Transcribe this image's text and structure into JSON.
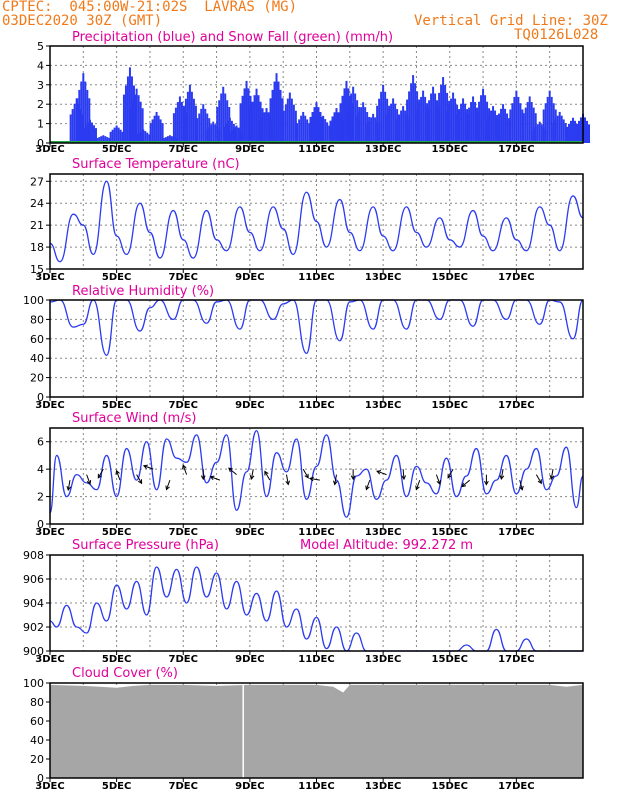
{
  "header": {
    "line1_left": "CPTEC:  045:00W-21:02S  LAVRAS (MG)",
    "line2_left": "03DEC2020 30Z (GMT)",
    "line2_right": "Vertical Grid Line: 30Z",
    "line3_right": "TQ0126L028"
  },
  "colors": {
    "header": "#f07a1a",
    "panel_title": "#e0009a",
    "series": "#2b3bf0",
    "snow": "#1aa84a",
    "cloud": "#a6a6a6",
    "grid": "#888888"
  },
  "chart_data": [
    {
      "type": "bar",
      "title": "Precipitation (blue) and Snow Fall (green) (mm/h)",
      "ylim": [
        0,
        5
      ],
      "yticks": [
        "0",
        "1",
        "2",
        "3",
        "4",
        "5"
      ],
      "xticks": [
        "3DEC",
        "5DEC",
        "7DEC",
        "9DEC",
        "11DEC",
        "13DEC",
        "15DEC",
        "17DEC"
      ],
      "x_range_days": [
        3,
        19
      ],
      "series": [
        {
          "name": "Precipitation",
          "x": [
            3.8,
            4.0,
            4.2,
            4.6,
            5.0,
            5.4,
            5.6,
            5.8,
            6.2,
            6.6,
            6.9,
            7.2,
            7.6,
            7.9,
            8.2,
            8.4,
            8.6,
            8.9,
            9.2,
            9.5,
            9.8,
            10.2,
            10.6,
            11.0,
            11.2,
            11.6,
            11.9,
            12.1,
            12.4,
            12.7,
            13.0,
            13.3,
            13.6,
            13.9,
            14.2,
            14.5,
            14.8,
            15.1,
            15.4,
            15.7,
            16.0,
            16.3,
            16.6,
            17.0,
            17.4,
            17.7,
            18.0,
            18.3,
            18.7,
            19.0
          ],
          "values": [
            2.3,
            3.6,
            1.2,
            0.4,
            0.9,
            3.9,
            2.8,
            0.7,
            1.6,
            0.4,
            2.4,
            3.0,
            2.0,
            1.1,
            2.9,
            1.3,
            0.9,
            3.2,
            2.8,
            1.8,
            3.6,
            2.6,
            1.6,
            2.1,
            1.4,
            1.8,
            3.2,
            2.9,
            2.1,
            1.5,
            3.0,
            2.3,
            1.9,
            3.5,
            2.7,
            2.9,
            3.4,
            2.6,
            2.3,
            2.4,
            2.8,
            1.9,
            2.0,
            2.7,
            2.4,
            1.1,
            2.7,
            1.6,
            1.3,
            1.5
          ]
        },
        {
          "name": "Snow Fall",
          "x": [
            3,
            19
          ],
          "values": [
            0,
            0
          ]
        }
      ]
    },
    {
      "type": "line",
      "title": "Surface Temperature (nC)",
      "ylim": [
        15,
        28
      ],
      "yticks": [
        "15",
        "18",
        "21",
        "24",
        "27"
      ],
      "xticks": [
        "3DEC",
        "5DEC",
        "7DEC",
        "9DEC",
        "11DEC",
        "13DEC",
        "15DEC",
        "17DEC"
      ],
      "x_range_days": [
        3,
        19
      ],
      "series": [
        {
          "name": "",
          "x": [
            3.0,
            3.3,
            3.7,
            4.0,
            4.3,
            4.7,
            5.0,
            5.3,
            5.7,
            6.0,
            6.3,
            6.7,
            7.0,
            7.3,
            7.7,
            8.0,
            8.3,
            8.7,
            9.0,
            9.3,
            9.7,
            10.0,
            10.3,
            10.7,
            11.0,
            11.3,
            11.7,
            12.0,
            12.3,
            12.7,
            13.0,
            13.3,
            13.7,
            14.0,
            14.3,
            14.7,
            15.0,
            15.3,
            15.7,
            16.0,
            16.3,
            16.7,
            17.0,
            17.3,
            17.7,
            18.0,
            18.3,
            18.7,
            19.0
          ],
          "values": [
            18.5,
            16.0,
            22.5,
            21.0,
            17.0,
            27.0,
            19.5,
            17.0,
            24.0,
            20.0,
            16.5,
            23.0,
            19.0,
            16.5,
            23.0,
            19.0,
            17.5,
            23.5,
            20.0,
            17.5,
            23.5,
            20.5,
            17.0,
            25.5,
            21.5,
            18.0,
            24.5,
            20.0,
            17.5,
            23.5,
            19.5,
            17.5,
            23.5,
            20.0,
            18.0,
            22.0,
            19.0,
            18.0,
            23.0,
            19.5,
            17.5,
            22.0,
            19.0,
            17.5,
            23.5,
            21.0,
            17.5,
            25.0,
            22.0
          ]
        }
      ]
    },
    {
      "type": "line",
      "title": "Relative Humidity (%)",
      "ylim": [
        0,
        100
      ],
      "yticks": [
        "0",
        "20",
        "40",
        "60",
        "80",
        "100"
      ],
      "xticks": [
        "3DEC",
        "5DEC",
        "7DEC",
        "9DEC",
        "11DEC",
        "13DEC",
        "15DEC",
        "17DEC"
      ],
      "x_range_days": [
        3,
        19
      ],
      "series": [
        {
          "name": "",
          "x": [
            3.0,
            3.3,
            3.7,
            4.0,
            4.3,
            4.7,
            5.0,
            5.3,
            5.7,
            6.0,
            6.3,
            6.7,
            7.0,
            7.3,
            7.7,
            8.0,
            8.3,
            8.7,
            9.0,
            9.3,
            9.7,
            10.0,
            10.3,
            10.7,
            11.0,
            11.3,
            11.7,
            12.0,
            12.3,
            12.7,
            13.0,
            13.3,
            13.7,
            14.0,
            14.3,
            14.7,
            15.0,
            15.3,
            15.7,
            16.0,
            16.3,
            16.7,
            17.0,
            17.3,
            17.7,
            18.0,
            18.3,
            18.7,
            19.0
          ],
          "values": [
            98,
            100,
            72,
            75,
            100,
            43,
            100,
            100,
            68,
            92,
            100,
            80,
            100,
            100,
            76,
            98,
            100,
            70,
            100,
            100,
            80,
            96,
            100,
            45,
            100,
            100,
            58,
            98,
            100,
            70,
            100,
            100,
            70,
            100,
            100,
            80,
            100,
            100,
            73,
            100,
            100,
            80,
            100,
            100,
            75,
            100,
            98,
            60,
            100
          ]
        }
      ]
    },
    {
      "type": "line",
      "title": "Surface Wind (m/s)",
      "ylim": [
        0,
        7
      ],
      "yticks": [
        "0",
        "2",
        "4",
        "6"
      ],
      "xticks": [
        "3DEC",
        "5DEC",
        "7DEC",
        "9DEC",
        "11DEC",
        "13DEC",
        "15DEC",
        "17DEC"
      ],
      "x_range_days": [
        3,
        19
      ],
      "series": [
        {
          "name": "",
          "x": [
            3.0,
            3.2,
            3.5,
            3.8,
            4.1,
            4.4,
            4.7,
            5.0,
            5.3,
            5.6,
            5.9,
            6.2,
            6.5,
            6.8,
            7.1,
            7.4,
            7.7,
            8.0,
            8.3,
            8.6,
            8.9,
            9.2,
            9.5,
            9.8,
            10.1,
            10.4,
            10.7,
            11.0,
            11.3,
            11.6,
            11.9,
            12.2,
            12.5,
            12.8,
            13.1,
            13.4,
            13.7,
            14.0,
            14.3,
            14.6,
            14.9,
            15.2,
            15.5,
            15.8,
            16.1,
            16.4,
            16.7,
            17.0,
            17.3,
            17.6,
            17.9,
            18.2,
            18.5,
            18.8,
            19.0
          ],
          "values": [
            0.8,
            5.0,
            2.0,
            3.6,
            3.0,
            2.5,
            5.0,
            2.0,
            5.5,
            3.2,
            6.0,
            2.5,
            6.2,
            4.8,
            4.5,
            6.5,
            3.0,
            4.5,
            6.5,
            1.0,
            3.8,
            6.8,
            2.0,
            5.2,
            3.8,
            6.2,
            1.8,
            4.2,
            6.5,
            3.2,
            0.5,
            3.5,
            4.0,
            1.8,
            3.2,
            5.0,
            2.0,
            4.2,
            3.0,
            2.2,
            4.8,
            2.0,
            3.5,
            5.5,
            2.2,
            3.2,
            5.0,
            2.2,
            4.0,
            5.5,
            2.5,
            3.5,
            5.6,
            1.2,
            3.5
          ]
        }
      ],
      "annotations": "wind direction arrows"
    },
    {
      "type": "line",
      "title": "Surface Pressure (hPa)",
      "subtitle": "Model Altitude: 992.272 m",
      "ylim": [
        900,
        908
      ],
      "yticks": [
        "900",
        "902",
        "904",
        "906",
        "908"
      ],
      "xticks": [
        "3DEC",
        "5DEC",
        "7DEC",
        "9DEC",
        "11DEC",
        "13DEC",
        "15DEC",
        "17DEC"
      ],
      "x_range_days": [
        3,
        19
      ],
      "series": [
        {
          "name": "",
          "x": [
            3.0,
            3.2,
            3.5,
            3.8,
            4.1,
            4.4,
            4.7,
            5.0,
            5.3,
            5.6,
            5.9,
            6.2,
            6.5,
            6.8,
            7.1,
            7.4,
            7.7,
            8.0,
            8.3,
            8.6,
            8.9,
            9.2,
            9.5,
            9.8,
            10.1,
            10.4,
            10.7,
            11.0,
            11.3,
            11.6,
            11.9,
            12.2,
            12.5,
            12.8,
            13.1,
            13.4,
            13.7,
            14.0,
            14.3,
            14.6,
            14.9,
            15.2,
            15.5,
            15.8,
            16.1,
            16.4,
            16.7,
            17.0,
            17.3,
            17.6,
            17.9,
            18.2,
            18.5,
            18.8,
            19.0
          ],
          "values": [
            902.5,
            902.0,
            903.8,
            902.0,
            901.5,
            904.0,
            902.5,
            905.5,
            903.5,
            905.8,
            903.0,
            907.0,
            904.5,
            906.8,
            904.0,
            907.0,
            904.5,
            906.5,
            903.5,
            905.8,
            903.0,
            904.8,
            902.5,
            905.0,
            902.0,
            903.5,
            901.0,
            902.8,
            900.2,
            902.0,
            900.0,
            901.5,
            900.0,
            900.0,
            900.0,
            900.0,
            900.0,
            900.0,
            900.0,
            900.0,
            900.0,
            900.0,
            900.5,
            900.0,
            900.0,
            901.8,
            900.0,
            900.0,
            901.0,
            900.0,
            900.0,
            900.0,
            900.0,
            900.0,
            900.0
          ]
        }
      ]
    },
    {
      "type": "area",
      "title": "Cloud Cover (%)",
      "ylim": [
        0,
        100
      ],
      "yticks": [
        "0",
        "20",
        "40",
        "60",
        "80",
        "100"
      ],
      "xticks": [
        "3DEC",
        "5DEC",
        "7DEC",
        "9DEC",
        "11DEC",
        "13DEC",
        "15DEC",
        "17DEC"
      ],
      "x_range_days": [
        3,
        19
      ],
      "series": [
        {
          "name": "",
          "x": [
            3.0,
            4.0,
            4.5,
            5.0,
            5.5,
            6.0,
            7.0,
            8.0,
            9.0,
            10.0,
            11.0,
            11.5,
            11.8,
            12.0,
            13.0,
            14.0,
            15.0,
            16.0,
            17.0,
            18.0,
            18.5,
            19.0
          ],
          "values": [
            98,
            97,
            96,
            95,
            97,
            98,
            98,
            97,
            98,
            98,
            98,
            96,
            90,
            98,
            98,
            98,
            98,
            98,
            98,
            98,
            96,
            98
          ]
        }
      ]
    }
  ]
}
